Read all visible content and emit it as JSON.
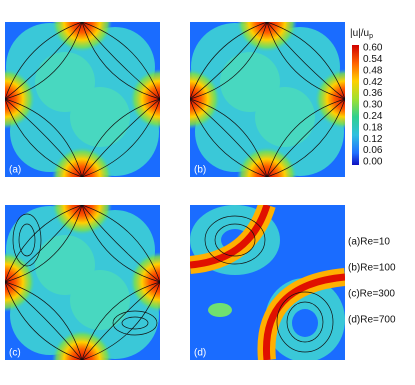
{
  "panels": [
    {
      "label": "(a)"
    },
    {
      "label": "(b)"
    },
    {
      "label": "(c)"
    },
    {
      "label": "(d)"
    }
  ],
  "colorbar": {
    "title": "|u|/u",
    "title_sub": "p",
    "ticks": [
      "0.60",
      "0.54",
      "0.48",
      "0.42",
      "0.36",
      "0.30",
      "0.24",
      "0.18",
      "0.12",
      "0.06",
      "0.00"
    ]
  },
  "legend": [
    "(a)Re=10",
    "(b)Re=100",
    "(c)Re=300",
    "(d)Re=700"
  ]
}
